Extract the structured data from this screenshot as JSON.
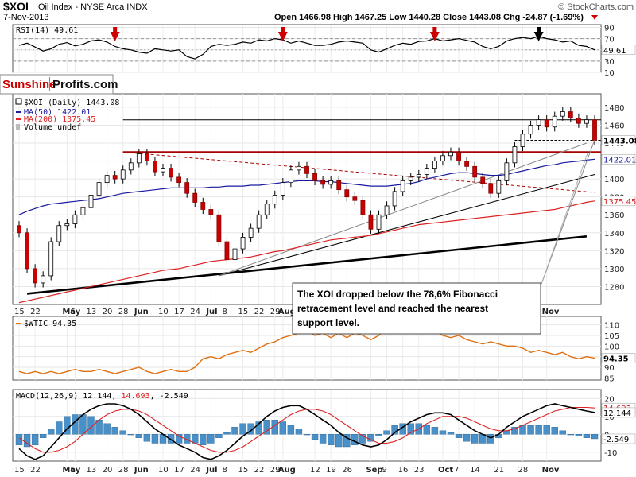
{
  "header": {
    "symbol": "$XOI",
    "name": "Oil Index - NYSE Arca INDX",
    "date": "7-Nov-2013",
    "watermark": "© StockCharts.com",
    "ohlc": "Open 1466.98  High 1467.25  Low 1440.28  Close 1443.08  Chg -24.87 (-1.69%)"
  },
  "logo": {
    "left": "Sunshine",
    "right": "Profits.com"
  },
  "annotation": [
    "The XOI dropped below the 78,6% Fibonacci",
    "retracement level and reached the nearest",
    "support level."
  ],
  "chart_data": [
    {
      "type": "line",
      "panel": "rsi",
      "legend": "RSI(14) 49.61",
      "ylim": [
        10,
        95
      ],
      "ticks": [
        "90",
        "70",
        "50",
        "30",
        "10"
      ],
      "tick_values": [
        90,
        70,
        50,
        30,
        10
      ],
      "last_label": "49.61",
      "values": [
        58,
        62,
        55,
        48,
        52,
        60,
        63,
        57,
        60,
        66,
        68,
        64,
        56,
        52,
        50,
        46,
        44,
        52,
        50,
        48,
        50,
        38,
        34,
        42,
        56,
        60,
        58,
        60,
        64,
        62,
        68,
        66,
        70,
        68,
        62,
        66,
        62,
        58,
        58,
        60,
        64,
        66,
        64,
        62,
        50,
        46,
        52,
        58,
        62,
        60,
        65,
        66,
        70,
        66,
        68,
        70,
        67,
        64,
        56,
        52,
        56,
        66,
        70,
        72,
        70,
        74,
        70,
        68,
        64,
        66,
        58,
        56,
        50
      ],
      "arrows": [
        {
          "index": 12,
          "color": "#cc0000"
        },
        {
          "index": 33,
          "color": "#cc0000"
        },
        {
          "index": 52,
          "color": "#cc0000"
        },
        {
          "index": 65,
          "color": "#000000"
        }
      ]
    },
    {
      "type": "candlestick",
      "panel": "price",
      "legend": [
        "$XOI (Daily) 1443.08",
        "MA(50) 1422.01",
        "MA(200) 1375.45",
        "Volume undef"
      ],
      "ylim": [
        1260,
        1495
      ],
      "ticks": [
        "1480",
        "1460",
        "1440",
        "1420",
        "1400",
        "1380",
        "1360",
        "1340",
        "1320",
        "1300",
        "1280"
      ],
      "tick_values": [
        1480,
        1460,
        1440,
        1420,
        1400,
        1380,
        1360,
        1340,
        1320,
        1300,
        1280
      ],
      "last_labels": [
        {
          "text": "1443.08",
          "value": 1443.08,
          "style": "bold"
        },
        {
          "text": "1422.01",
          "value": 1422.01,
          "style": "blue"
        },
        {
          "text": "1375.45",
          "value": 1375.45,
          "style": "red"
        }
      ],
      "close": [
        1340,
        1300,
        1284,
        1292,
        1330,
        1348,
        1350,
        1360,
        1368,
        1382,
        1396,
        1404,
        1400,
        1410,
        1418,
        1428,
        1420,
        1408,
        1412,
        1402,
        1396,
        1384,
        1374,
        1366,
        1360,
        1330,
        1310,
        1322,
        1335,
        1345,
        1360,
        1372,
        1382,
        1396,
        1410,
        1414,
        1406,
        1398,
        1394,
        1398,
        1388,
        1380,
        1376,
        1360,
        1344,
        1360,
        1370,
        1386,
        1398,
        1402,
        1405,
        1412,
        1420,
        1426,
        1430,
        1420,
        1414,
        1402,
        1395,
        1384,
        1398,
        1418,
        1436,
        1450,
        1460,
        1466,
        1458,
        1470,
        1475,
        1468,
        1462,
        1466,
        1443
      ],
      "ma50": [
        1360,
        1364,
        1367,
        1370,
        1372,
        1373,
        1374,
        1375,
        1376,
        1377,
        1378,
        1380,
        1382,
        1384,
        1385,
        1386,
        1387,
        1388,
        1389,
        1390,
        1390,
        1390,
        1390,
        1390,
        1391,
        1391,
        1392,
        1392,
        1392,
        1393,
        1393,
        1394,
        1395,
        1396,
        1397,
        1398,
        1398,
        1398,
        1397,
        1397,
        1396,
        1395,
        1394,
        1393,
        1392,
        1392,
        1392,
        1393,
        1394,
        1395,
        1397,
        1400,
        1402,
        1404,
        1406,
        1407,
        1407,
        1406,
        1405,
        1404,
        1404,
        1405,
        1407,
        1409,
        1411,
        1413,
        1415,
        1416,
        1418,
        1419,
        1420,
        1421,
        1422.01
      ],
      "ma200": [
        1262,
        1264,
        1266,
        1268,
        1270,
        1272,
        1274,
        1276,
        1278,
        1280,
        1282,
        1284,
        1286,
        1288,
        1290,
        1292,
        1294,
        1296,
        1298,
        1299,
        1300,
        1302,
        1304,
        1306,
        1308,
        1309,
        1310,
        1311,
        1312,
        1313,
        1315,
        1317,
        1319,
        1320,
        1322,
        1324,
        1326,
        1328,
        1330,
        1332,
        1333,
        1334,
        1335,
        1336,
        1337,
        1339,
        1341,
        1343,
        1345,
        1347,
        1349,
        1350,
        1351,
        1352,
        1353,
        1354,
        1355,
        1356,
        1357,
        1358,
        1359,
        1360,
        1361,
        1362,
        1363,
        1364,
        1365,
        1366,
        1368,
        1370,
        1372,
        1374,
        1375.45
      ]
    },
    {
      "type": "line",
      "panel": "wtic",
      "legend": "$WTIC 94.35",
      "ylim": [
        84,
        114
      ],
      "ticks": [
        "110",
        "105",
        "100",
        "95",
        "90",
        "85"
      ],
      "tick_values": [
        110,
        105,
        100,
        95,
        90,
        85
      ],
      "last_label": "94.35",
      "values": [
        88,
        87,
        88,
        87,
        88,
        87,
        88,
        89,
        88,
        88,
        89,
        88,
        87,
        88,
        89,
        90,
        88,
        87,
        88,
        89,
        88,
        88,
        90,
        94,
        95,
        94,
        96,
        97,
        98,
        97,
        99,
        101,
        102,
        104,
        105,
        106,
        107,
        105,
        106,
        104,
        106,
        104,
        106,
        105,
        103,
        105,
        108,
        109,
        107,
        106,
        108,
        106,
        107,
        105,
        104,
        105,
        103,
        102,
        101,
        102,
        101,
        100,
        100,
        99,
        97,
        98,
        97,
        96,
        97,
        95,
        94,
        95,
        94.35
      ]
    },
    {
      "type": "line",
      "panel": "macd",
      "legend": "MACD(12,26,9) 12.144, 14.693, -2.549",
      "legend_parts": [
        "MACD(12,26,9) 12.144, ",
        "14.693",
        ", -2.549"
      ],
      "ylim": [
        -15,
        25
      ],
      "ticks": [
        "20",
        "10",
        "0",
        "-10"
      ],
      "tick_values": [
        20,
        10,
        0,
        -10
      ],
      "last_labels": [
        {
          "text": "14.693",
          "value": 14.693
        },
        {
          "text": "12.144",
          "value": 12.144
        },
        {
          "text": "-2.549",
          "value": -2.549
        }
      ],
      "macd": [
        -8,
        -12,
        -14,
        -12,
        -7,
        -2,
        3,
        7,
        11,
        14,
        16,
        17,
        17,
        16,
        14,
        11,
        7,
        3,
        0,
        -3,
        -6,
        -8,
        -10,
        -13,
        -14,
        -12,
        -9,
        -5,
        -1,
        2,
        6,
        10,
        13,
        15,
        16,
        16,
        14,
        11,
        8,
        5,
        1,
        -2,
        -4,
        -6,
        -7,
        -6,
        -3,
        1,
        4,
        7,
        9,
        11,
        12,
        12,
        11,
        8,
        5,
        2,
        0,
        -2,
        0,
        4,
        7,
        10,
        12,
        14,
        16,
        17,
        16,
        15,
        14,
        13,
        12.144
      ],
      "signal": [
        -2,
        -5,
        -8,
        -10,
        -10,
        -9,
        -7,
        -4,
        0,
        4,
        8,
        11,
        13,
        14,
        14,
        13,
        11,
        8,
        5,
        2,
        -1,
        -3,
        -5,
        -7,
        -9,
        -10,
        -10,
        -9,
        -7,
        -4,
        -1,
        2,
        5,
        8,
        11,
        13,
        14,
        14,
        13,
        11,
        8,
        5,
        2,
        -1,
        -3,
        -5,
        -5,
        -4,
        -2,
        1,
        3,
        6,
        8,
        10,
        10,
        10,
        9,
        7,
        5,
        3,
        2,
        2,
        3,
        5,
        7,
        9,
        11,
        13,
        14,
        15,
        15,
        15,
        14.693
      ],
      "histogram": [
        -6,
        -7,
        -6,
        -2,
        3,
        7,
        10,
        11,
        11,
        10,
        8,
        6,
        4,
        2,
        0,
        -2,
        -4,
        -5,
        -5,
        -5,
        -5,
        -5,
        -5,
        -6,
        -5,
        -2,
        1,
        4,
        6,
        6,
        7,
        8,
        8,
        7,
        5,
        3,
        0,
        -3,
        -5,
        -6,
        -7,
        -7,
        -6,
        -5,
        -4,
        -1,
        2,
        5,
        6,
        6,
        6,
        5,
        4,
        2,
        1,
        -2,
        -4,
        -5,
        -5,
        -5,
        -2,
        2,
        4,
        5,
        5,
        5,
        5,
        4,
        2,
        0,
        -1,
        -2,
        -2.549
      ]
    }
  ],
  "x_axis": [
    {
      "label": "15",
      "index": 0,
      "bold": false
    },
    {
      "label": "22",
      "index": 2,
      "bold": false
    },
    {
      "label": "May",
      "index": 6,
      "bold": true
    },
    {
      "label": "6",
      "index": 7,
      "bold": false
    },
    {
      "label": "13",
      "index": 9,
      "bold": false
    },
    {
      "label": "20",
      "index": 11,
      "bold": false
    },
    {
      "label": "28",
      "index": 13,
      "bold": false
    },
    {
      "label": "Jun",
      "index": 15,
      "bold": true
    },
    {
      "label": "10",
      "index": 18,
      "bold": false
    },
    {
      "label": "17",
      "index": 20,
      "bold": false
    },
    {
      "label": "24",
      "index": 22,
      "bold": false
    },
    {
      "label": "Jul",
      "index": 24,
      "bold": true
    },
    {
      "label": "8",
      "index": 26,
      "bold": false
    },
    {
      "label": "15",
      "index": 28,
      "bold": false
    },
    {
      "label": "22",
      "index": 30,
      "bold": false
    },
    {
      "label": "29",
      "index": 32,
      "bold": false
    },
    {
      "label": "Aug",
      "index": 33,
      "bold": true
    },
    {
      "label": "12",
      "index": 37,
      "bold": false
    },
    {
      "label": "19",
      "index": 39,
      "bold": false
    },
    {
      "label": "26",
      "index": 41,
      "bold": false
    },
    {
      "label": "Sep",
      "index": 44,
      "bold": true
    },
    {
      "label": "9",
      "index": 46,
      "bold": false
    },
    {
      "label": "16",
      "index": 48,
      "bold": false
    },
    {
      "label": "23",
      "index": 50,
      "bold": false
    },
    {
      "label": "Oct",
      "index": 53,
      "bold": true
    },
    {
      "label": "7",
      "index": 55,
      "bold": false
    },
    {
      "label": "14",
      "index": 57,
      "bold": false
    },
    {
      "label": "21",
      "index": 60,
      "bold": false
    },
    {
      "label": "28",
      "index": 63,
      "bold": false
    },
    {
      "label": "Nov",
      "index": 66,
      "bold": true
    }
  ],
  "colors": {
    "up": "#ffffff",
    "down": "#cc0000",
    "ma50": "#1a1aa0",
    "ma200": "#dd2222",
    "wtic": "#e07010",
    "macd": "#000000",
    "signal": "#dd2222",
    "hist": "#4a90c8",
    "resistance": "#aa0000"
  }
}
